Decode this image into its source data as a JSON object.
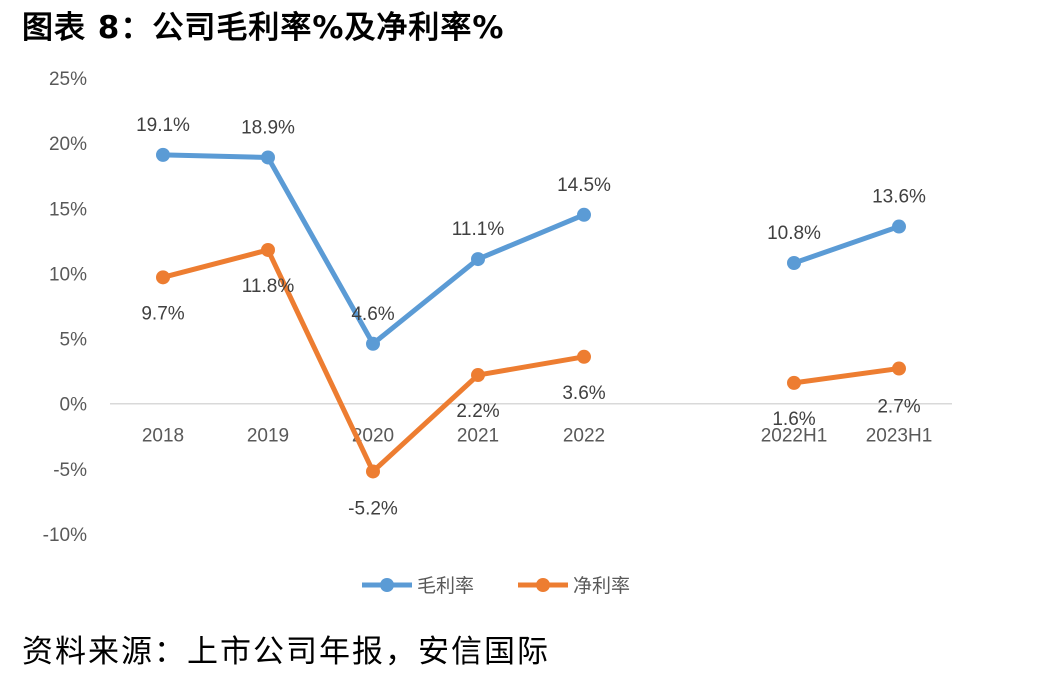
{
  "title": "图表 8：公司毛利率%及净利率%",
  "source": "资料来源：上市公司年报，安信国际",
  "chart_data": {
    "type": "line",
    "categories": [
      "2018",
      "2019",
      "2020",
      "2021",
      "2022",
      "2022H1",
      "2023H1"
    ],
    "ylim": [
      -10,
      25
    ],
    "yticks": [
      "25%",
      "20%",
      "15%",
      "10%",
      "5%",
      "0%",
      "-5%",
      "-10%"
    ],
    "ytick_values": [
      25,
      20,
      15,
      10,
      5,
      0,
      -5,
      -10
    ],
    "legend_position": "bottom",
    "grid": false,
    "series": [
      {
        "name": "毛利率",
        "color": "#5B9BD5",
        "segments": [
          [
            0,
            1,
            2,
            3,
            4
          ],
          [
            5,
            6
          ]
        ],
        "values": [
          19.1,
          18.9,
          4.6,
          11.1,
          14.5,
          10.8,
          13.6
        ],
        "labels": [
          "19.1%",
          "18.9%",
          "4.6%",
          "11.1%",
          "14.5%",
          "10.8%",
          "13.6%"
        ]
      },
      {
        "name": "净利率",
        "color": "#ED7D31",
        "segments": [
          [
            0,
            1,
            2,
            3,
            4
          ],
          [
            5,
            6
          ]
        ],
        "values": [
          9.7,
          11.8,
          -5.2,
          2.2,
          3.6,
          1.6,
          2.7
        ],
        "labels": [
          "9.7%",
          "11.8%",
          "-5.2%",
          "2.2%",
          "3.6%",
          "1.6%",
          "2.7%"
        ]
      }
    ]
  }
}
